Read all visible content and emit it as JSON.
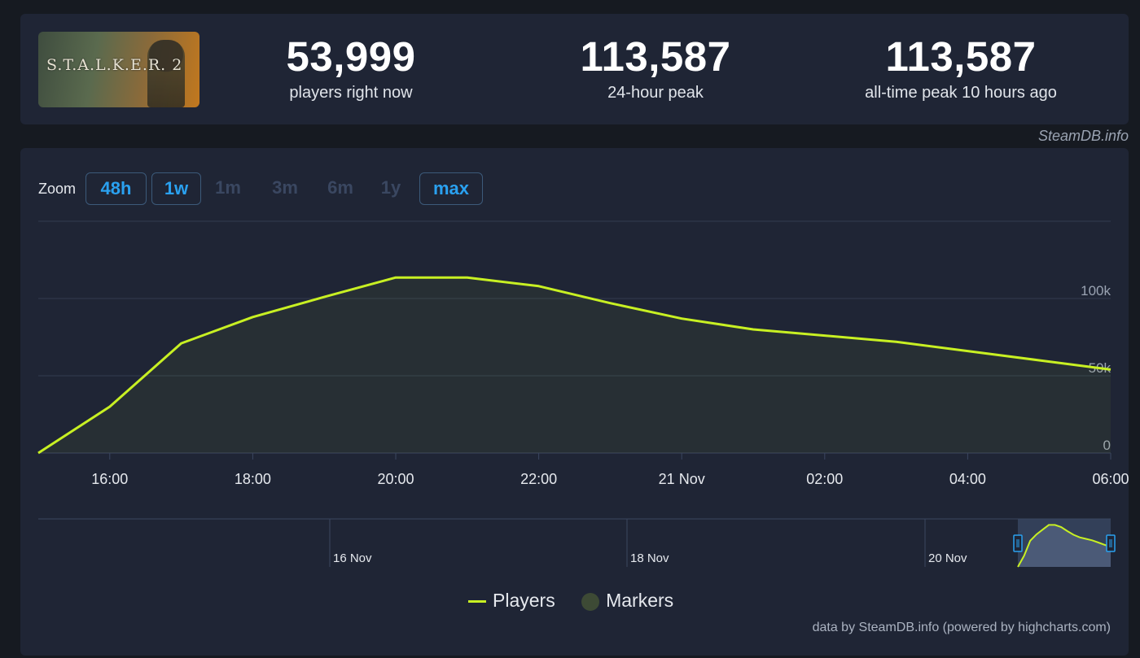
{
  "game": {
    "logo_text": "S.T.A.L.K.E.R. 2"
  },
  "stats": [
    {
      "value": "53,999",
      "label": "players right now"
    },
    {
      "value": "113,587",
      "label": "24-hour peak"
    },
    {
      "value": "113,587",
      "label": "all-time peak 10 hours ago"
    }
  ],
  "brand": "SteamDB.info",
  "zoom": {
    "label": "Zoom",
    "buttons": [
      {
        "label": "48h",
        "active": true
      },
      {
        "label": "1w",
        "active": true
      },
      {
        "label": "1m",
        "active": false
      },
      {
        "label": "3m",
        "active": false
      },
      {
        "label": "6m",
        "active": false
      },
      {
        "label": "1y",
        "active": false
      },
      {
        "label": "max",
        "active": true
      }
    ]
  },
  "legend": {
    "players": "Players",
    "markers": "Markers"
  },
  "credit": "data by SteamDB.info (powered by highcharts.com)",
  "colors": {
    "line": "#c8f023",
    "accent": "#2aa1f0",
    "marker": "#3d4a35"
  },
  "chart_data": {
    "type": "line",
    "x_ticks": [
      "16:00",
      "18:00",
      "20:00",
      "22:00",
      "21 Nov",
      "02:00",
      "04:00",
      "06:00"
    ],
    "y_ticks": [
      "0",
      "50k",
      "100k"
    ],
    "ylim": [
      0,
      150000
    ],
    "series": [
      {
        "name": "Players",
        "x_hours": [
          15,
          16,
          17,
          18,
          19,
          20,
          21,
          22,
          23,
          24,
          25,
          26,
          27,
          28,
          29,
          30
        ],
        "values": [
          0,
          30000,
          71000,
          88000,
          101000,
          113587,
          113587,
          108000,
          97000,
          87000,
          80000,
          76000,
          72000,
          66000,
          60000,
          54000
        ]
      }
    ],
    "navigator": {
      "labels": [
        "16 Nov",
        "18 Nov",
        "20 Nov"
      ]
    }
  }
}
